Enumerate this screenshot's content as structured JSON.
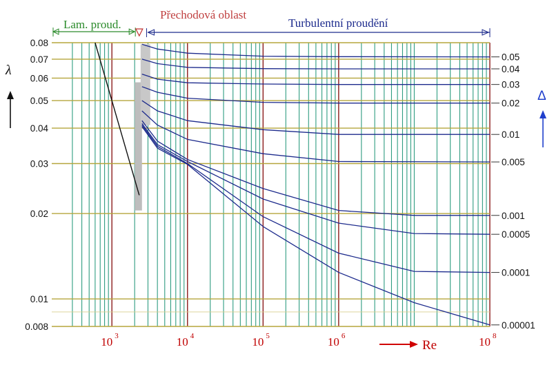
{
  "chart_data": {
    "type": "line",
    "title": "",
    "xlabel": "Re",
    "ylabel": "λ",
    "right_label": "Δ",
    "x_scale": "log",
    "y_scale": "log",
    "xlim": [
      160,
      100000000
    ],
    "ylim": [
      0.008,
      0.08
    ],
    "grid": true,
    "regions": {
      "laminar": "Lam. proud.",
      "transition": "Přechodová oblast",
      "turbulent": "Turbulentní proudění"
    },
    "x_ticks": [
      {
        "value": 1000,
        "base": "10",
        "exp": "3"
      },
      {
        "value": 10000,
        "base": "10",
        "exp": "4"
      },
      {
        "value": 100000,
        "base": "10",
        "exp": "5"
      },
      {
        "value": 1000000,
        "base": "10",
        "exp": "6"
      },
      {
        "value": 100000000,
        "base": "10",
        "exp": "8"
      }
    ],
    "y_ticks": [
      {
        "value": 0.08,
        "label": "0.08"
      },
      {
        "value": 0.07,
        "label": "0.07"
      },
      {
        "value": 0.06,
        "label": "0.06"
      },
      {
        "value": 0.05,
        "label": "0.05"
      },
      {
        "value": 0.04,
        "label": "0.04"
      },
      {
        "value": 0.03,
        "label": "0.03"
      },
      {
        "value": 0.02,
        "label": "0.02"
      },
      {
        "value": 0.01,
        "label": "0.01"
      },
      {
        "value": 0.008,
        "label": "0.008"
      }
    ],
    "laminar_line": {
      "x": [
        600,
        2300
      ],
      "y": [
        0.08,
        0.0232
      ]
    },
    "transition_band": {
      "x": [
        2000,
        2500
      ],
      "y": [
        0.0205,
        0.058
      ]
    },
    "series": [
      {
        "name": "0.05",
        "x": [
          2500,
          4000,
          10000,
          100000,
          1000000,
          100000000
        ],
        "y": [
          0.079,
          0.076,
          0.0735,
          0.0717,
          0.0714,
          0.0713
        ]
      },
      {
        "name": "0.04",
        "x": [
          2500,
          4000,
          10000,
          100000,
          1000000,
          100000000
        ],
        "y": [
          0.07,
          0.0675,
          0.0655,
          0.0648,
          0.0647,
          0.0647
        ]
      },
      {
        "name": "0.03",
        "x": [
          2500,
          4000,
          10000,
          100000,
          1000000,
          100000000
        ],
        "y": [
          0.062,
          0.0595,
          0.0578,
          0.0572,
          0.057,
          0.057
        ]
      },
      {
        "name": "0.02",
        "x": [
          2500,
          4000,
          10000,
          100000,
          1000000,
          100000000
        ],
        "y": [
          0.056,
          0.0535,
          0.051,
          0.0493,
          0.049,
          0.049
        ]
      },
      {
        "name": "0.01",
        "x": [
          2500,
          4000,
          10000,
          100000,
          1000000,
          100000000
        ],
        "y": [
          0.05,
          0.046,
          0.0425,
          0.0395,
          0.038,
          0.038
        ]
      },
      {
        "name": "0.005",
        "x": [
          2500,
          4000,
          10000,
          100000,
          1000000,
          100000000
        ],
        "y": [
          0.046,
          0.041,
          0.0365,
          0.0325,
          0.0305,
          0.0304
        ]
      },
      {
        "name": "0.001",
        "x": [
          2500,
          4000,
          10000,
          100000,
          1000000,
          10000000,
          100000000
        ],
        "y": [
          0.0425,
          0.036,
          0.031,
          0.0245,
          0.0205,
          0.0197,
          0.0197
        ]
      },
      {
        "name": "0.0005",
        "x": [
          2500,
          4000,
          10000,
          100000,
          1000000,
          10000000,
          100000000
        ],
        "y": [
          0.0415,
          0.035,
          0.0305,
          0.0225,
          0.0185,
          0.017,
          0.0169
        ]
      },
      {
        "name": "0.0001",
        "x": [
          2500,
          4000,
          10000,
          100000,
          1000000,
          10000000,
          100000000
        ],
        "y": [
          0.041,
          0.0345,
          0.03,
          0.0195,
          0.0145,
          0.0125,
          0.0124
        ]
      },
      {
        "name": "0.00001",
        "x": [
          2500,
          4000,
          10000,
          100000,
          1000000,
          10000000,
          100000000
        ],
        "y": [
          0.0405,
          0.034,
          0.0298,
          0.018,
          0.0124,
          0.0097,
          0.0081
        ]
      }
    ]
  }
}
